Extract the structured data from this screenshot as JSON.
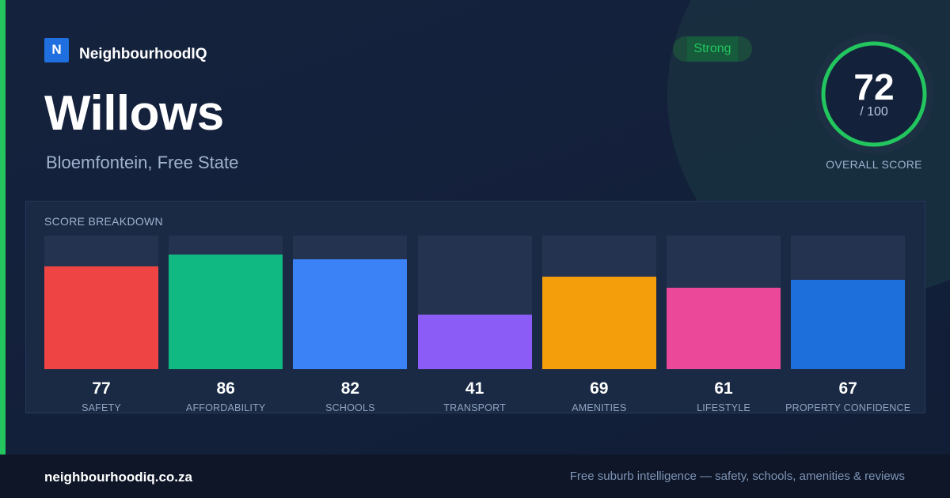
{
  "brand": {
    "logo_letter": "N",
    "name": "NeighbourhoodIQ"
  },
  "suburb": {
    "name": "Willows",
    "location": "Bloemfontein, Free State"
  },
  "rating_badge": {
    "label": "Strong",
    "color": "#22c55e"
  },
  "overall": {
    "score": "72",
    "max_label": "/ 100",
    "caption": "OVERALL SCORE",
    "fraction": 0.72,
    "ring_color": "#22c55e"
  },
  "breakdown": {
    "title": "SCORE BREAKDOWN",
    "items": [
      {
        "value": "77",
        "label": "SAFETY",
        "color": "#ef4444"
      },
      {
        "value": "86",
        "label": "AFFORDABILITY",
        "color": "#10b981"
      },
      {
        "value": "82",
        "label": "SCHOOLS",
        "color": "#3b82f6"
      },
      {
        "value": "41",
        "label": "TRANSPORT",
        "color": "#8b5cf6"
      },
      {
        "value": "69",
        "label": "AMENITIES",
        "color": "#f59e0b"
      },
      {
        "value": "61",
        "label": "LIFESTYLE",
        "color": "#ec4899"
      },
      {
        "value": "67",
        "label": "PROPERTY CONFIDENCE",
        "color": "#1d6fdc"
      }
    ]
  },
  "footer": {
    "site": "neighbourhoodiq.co.za",
    "tagline": "Free suburb intelligence — safety, schools, amenities & reviews"
  }
}
